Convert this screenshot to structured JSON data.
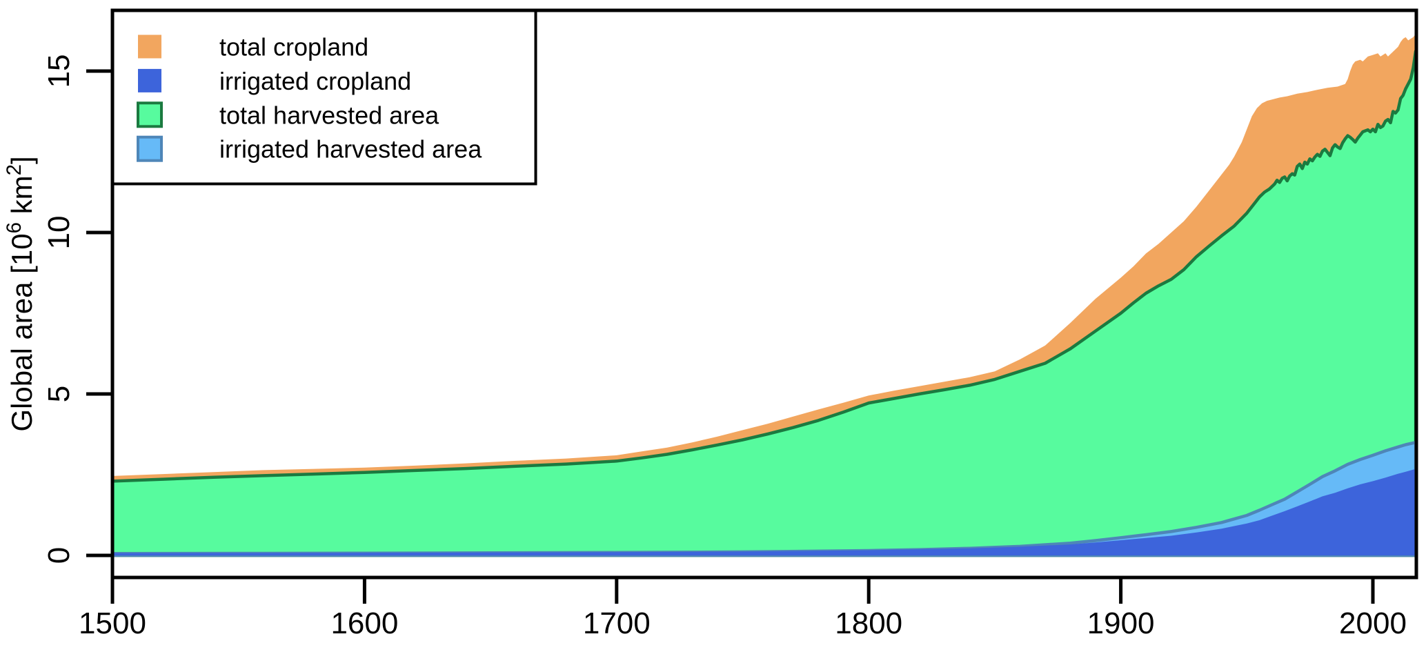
{
  "figure": {
    "background": "#ffffff",
    "frame_color": "#000000"
  },
  "chart_data": {
    "type": "area",
    "title": "",
    "xlabel": "",
    "ylabel": "Global area [10^6 km^2]",
    "ylabel_parts": [
      {
        "t": "Global area [10"
      },
      {
        "t": "6",
        "sup": true
      },
      {
        "t": " km"
      },
      {
        "t": "2",
        "sup": true
      },
      {
        "t": "]"
      }
    ],
    "xlim": [
      1500,
      2017
    ],
    "ylim": [
      0,
      16.9
    ],
    "xticks": [
      1500,
      1600,
      1700,
      1800,
      1900,
      2000
    ],
    "yticks": [
      0,
      5,
      10,
      15
    ],
    "grid": false,
    "legend_position": "top-left",
    "legend": [
      {
        "label": "total cropland",
        "fill": "#F2A65F",
        "border": null
      },
      {
        "label": "irrigated cropland",
        "fill": "#3D64DB",
        "border": null
      },
      {
        "label": "total harvested area",
        "fill": "#57FB9E",
        "border": "#1B7A40"
      },
      {
        "label": "irrigated harvested area",
        "fill": "#66BAF7",
        "border": "#4E86B8"
      }
    ],
    "series": [
      {
        "name": "total cropland",
        "fill": "#F2A65F",
        "border": null,
        "points": [
          [
            1500,
            2.46
          ],
          [
            1520,
            2.52
          ],
          [
            1540,
            2.58
          ],
          [
            1560,
            2.64
          ],
          [
            1580,
            2.68
          ],
          [
            1600,
            2.72
          ],
          [
            1620,
            2.78
          ],
          [
            1640,
            2.85
          ],
          [
            1660,
            2.93
          ],
          [
            1680,
            3.0
          ],
          [
            1700,
            3.1
          ],
          [
            1710,
            3.22
          ],
          [
            1720,
            3.34
          ],
          [
            1730,
            3.5
          ],
          [
            1740,
            3.68
          ],
          [
            1750,
            3.88
          ],
          [
            1760,
            4.08
          ],
          [
            1770,
            4.3
          ],
          [
            1780,
            4.52
          ],
          [
            1790,
            4.73
          ],
          [
            1800,
            4.95
          ],
          [
            1810,
            5.1
          ],
          [
            1820,
            5.24
          ],
          [
            1830,
            5.38
          ],
          [
            1840,
            5.52
          ],
          [
            1850,
            5.7
          ],
          [
            1860,
            6.07
          ],
          [
            1870,
            6.5
          ],
          [
            1880,
            7.2
          ],
          [
            1890,
            7.95
          ],
          [
            1900,
            8.6
          ],
          [
            1905,
            8.95
          ],
          [
            1910,
            9.35
          ],
          [
            1915,
            9.65
          ],
          [
            1920,
            10.0
          ],
          [
            1925,
            10.35
          ],
          [
            1930,
            10.8
          ],
          [
            1935,
            11.3
          ],
          [
            1940,
            11.8
          ],
          [
            1943,
            12.1
          ],
          [
            1945,
            12.35
          ],
          [
            1948,
            12.8
          ],
          [
            1950,
            13.2
          ],
          [
            1952,
            13.6
          ],
          [
            1954,
            13.85
          ],
          [
            1956,
            14.0
          ],
          [
            1958,
            14.08
          ],
          [
            1960,
            14.12
          ],
          [
            1963,
            14.18
          ],
          [
            1966,
            14.22
          ],
          [
            1970,
            14.3
          ],
          [
            1974,
            14.35
          ],
          [
            1978,
            14.42
          ],
          [
            1982,
            14.48
          ],
          [
            1986,
            14.52
          ],
          [
            1989,
            14.6
          ],
          [
            1990,
            14.75
          ],
          [
            1991,
            15.0
          ],
          [
            1992,
            15.2
          ],
          [
            1993,
            15.3
          ],
          [
            1995,
            15.35
          ],
          [
            1996,
            15.3
          ],
          [
            1998,
            15.45
          ],
          [
            2000,
            15.5
          ],
          [
            2002,
            15.55
          ],
          [
            2003,
            15.45
          ],
          [
            2005,
            15.55
          ],
          [
            2006,
            15.45
          ],
          [
            2008,
            15.6
          ],
          [
            2010,
            15.75
          ],
          [
            2011,
            15.9
          ],
          [
            2012,
            16.0
          ],
          [
            2013,
            16.05
          ],
          [
            2014,
            15.95
          ],
          [
            2015,
            16.0
          ],
          [
            2016,
            16.05
          ],
          [
            2017,
            16.15
          ]
        ]
      },
      {
        "name": "total harvested area",
        "fill": "#57FB9E",
        "border": "#1B7A40",
        "points": [
          [
            1500,
            2.3
          ],
          [
            1520,
            2.36
          ],
          [
            1540,
            2.42
          ],
          [
            1560,
            2.47
          ],
          [
            1580,
            2.52
          ],
          [
            1600,
            2.57
          ],
          [
            1620,
            2.63
          ],
          [
            1640,
            2.69
          ],
          [
            1660,
            2.76
          ],
          [
            1680,
            2.83
          ],
          [
            1700,
            2.92
          ],
          [
            1710,
            3.02
          ],
          [
            1720,
            3.13
          ],
          [
            1730,
            3.27
          ],
          [
            1740,
            3.42
          ],
          [
            1750,
            3.58
          ],
          [
            1760,
            3.76
          ],
          [
            1770,
            3.96
          ],
          [
            1780,
            4.18
          ],
          [
            1790,
            4.44
          ],
          [
            1800,
            4.72
          ],
          [
            1810,
            4.86
          ],
          [
            1820,
            5.0
          ],
          [
            1830,
            5.13
          ],
          [
            1840,
            5.27
          ],
          [
            1850,
            5.45
          ],
          [
            1860,
            5.7
          ],
          [
            1870,
            5.95
          ],
          [
            1880,
            6.4
          ],
          [
            1890,
            6.95
          ],
          [
            1900,
            7.5
          ],
          [
            1905,
            7.82
          ],
          [
            1910,
            8.12
          ],
          [
            1915,
            8.35
          ],
          [
            1920,
            8.55
          ],
          [
            1925,
            8.85
          ],
          [
            1930,
            9.25
          ],
          [
            1935,
            9.58
          ],
          [
            1940,
            9.9
          ],
          [
            1945,
            10.2
          ],
          [
            1950,
            10.6
          ],
          [
            1953,
            10.9
          ],
          [
            1955,
            11.1
          ],
          [
            1957,
            11.25
          ],
          [
            1959,
            11.35
          ],
          [
            1961,
            11.5
          ],
          [
            1962,
            11.62
          ],
          [
            1963,
            11.55
          ],
          [
            1964,
            11.68
          ],
          [
            1965,
            11.72
          ],
          [
            1966,
            11.6
          ],
          [
            1967,
            11.75
          ],
          [
            1968,
            11.82
          ],
          [
            1969,
            11.78
          ],
          [
            1970,
            12.05
          ],
          [
            1971,
            12.12
          ],
          [
            1972,
            11.98
          ],
          [
            1973,
            12.18
          ],
          [
            1974,
            12.12
          ],
          [
            1975,
            12.28
          ],
          [
            1976,
            12.22
          ],
          [
            1977,
            12.34
          ],
          [
            1978,
            12.42
          ],
          [
            1979,
            12.36
          ],
          [
            1980,
            12.52
          ],
          [
            1981,
            12.58
          ],
          [
            1982,
            12.48
          ],
          [
            1983,
            12.38
          ],
          [
            1984,
            12.62
          ],
          [
            1985,
            12.72
          ],
          [
            1986,
            12.65
          ],
          [
            1987,
            12.6
          ],
          [
            1988,
            12.78
          ],
          [
            1989,
            12.9
          ],
          [
            1990,
            13.0
          ],
          [
            1991,
            12.95
          ],
          [
            1992,
            12.88
          ],
          [
            1993,
            12.8
          ],
          [
            1994,
            12.92
          ],
          [
            1995,
            13.02
          ],
          [
            1996,
            13.12
          ],
          [
            1997,
            13.15
          ],
          [
            1998,
            13.18
          ],
          [
            1999,
            13.12
          ],
          [
            2000,
            13.2
          ],
          [
            2001,
            13.12
          ],
          [
            2002,
            13.35
          ],
          [
            2003,
            13.25
          ],
          [
            2004,
            13.3
          ],
          [
            2005,
            13.45
          ],
          [
            2006,
            13.5
          ],
          [
            2007,
            13.4
          ],
          [
            2008,
            13.75
          ],
          [
            2009,
            13.7
          ],
          [
            2010,
            13.8
          ],
          [
            2011,
            14.15
          ],
          [
            2012,
            14.25
          ],
          [
            2013,
            14.45
          ],
          [
            2014,
            14.6
          ],
          [
            2015,
            14.75
          ],
          [
            2016,
            15.1
          ],
          [
            2017,
            15.62
          ]
        ]
      },
      {
        "name": "irrigated harvested area",
        "fill": "#66BAF7",
        "border": "#4E86B8",
        "points": [
          [
            1500,
            0.06
          ],
          [
            1550,
            0.065
          ],
          [
            1600,
            0.07
          ],
          [
            1650,
            0.08
          ],
          [
            1700,
            0.09
          ],
          [
            1750,
            0.11
          ],
          [
            1800,
            0.15
          ],
          [
            1820,
            0.18
          ],
          [
            1840,
            0.22
          ],
          [
            1860,
            0.28
          ],
          [
            1880,
            0.38
          ],
          [
            1890,
            0.46
          ],
          [
            1900,
            0.55
          ],
          [
            1910,
            0.64
          ],
          [
            1920,
            0.74
          ],
          [
            1930,
            0.87
          ],
          [
            1940,
            1.02
          ],
          [
            1950,
            1.24
          ],
          [
            1955,
            1.4
          ],
          [
            1960,
            1.57
          ],
          [
            1965,
            1.74
          ],
          [
            1970,
            1.97
          ],
          [
            1975,
            2.2
          ],
          [
            1980,
            2.44
          ],
          [
            1985,
            2.62
          ],
          [
            1990,
            2.82
          ],
          [
            1995,
            2.97
          ],
          [
            2000,
            3.1
          ],
          [
            2005,
            3.24
          ],
          [
            2010,
            3.36
          ],
          [
            2013,
            3.43
          ],
          [
            2017,
            3.5
          ]
        ]
      },
      {
        "name": "irrigated cropland",
        "fill": "#3D64DB",
        "border": null,
        "points": [
          [
            1500,
            0.07
          ],
          [
            1550,
            0.075
          ],
          [
            1600,
            0.08
          ],
          [
            1650,
            0.09
          ],
          [
            1700,
            0.1
          ],
          [
            1750,
            0.12
          ],
          [
            1800,
            0.16
          ],
          [
            1820,
            0.19
          ],
          [
            1840,
            0.22
          ],
          [
            1860,
            0.27
          ],
          [
            1880,
            0.34
          ],
          [
            1890,
            0.4
          ],
          [
            1900,
            0.47
          ],
          [
            1910,
            0.54
          ],
          [
            1920,
            0.61
          ],
          [
            1930,
            0.71
          ],
          [
            1940,
            0.83
          ],
          [
            1950,
            0.99
          ],
          [
            1955,
            1.09
          ],
          [
            1960,
            1.23
          ],
          [
            1965,
            1.37
          ],
          [
            1970,
            1.52
          ],
          [
            1975,
            1.67
          ],
          [
            1980,
            1.83
          ],
          [
            1985,
            1.94
          ],
          [
            1990,
            2.08
          ],
          [
            1995,
            2.2
          ],
          [
            2000,
            2.3
          ],
          [
            2005,
            2.41
          ],
          [
            2010,
            2.53
          ],
          [
            2013,
            2.59
          ],
          [
            2017,
            2.68
          ]
        ]
      }
    ]
  }
}
